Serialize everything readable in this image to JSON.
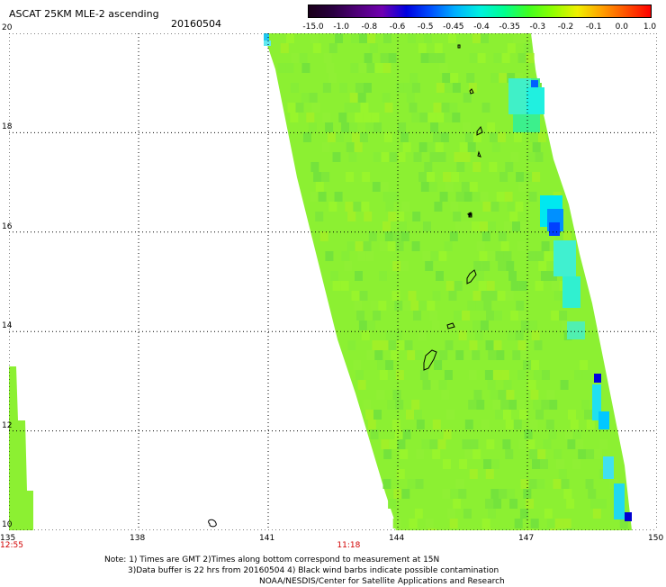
{
  "header": {
    "title": "ASCAT 25KM MLE-2 ascending",
    "date": "20160504"
  },
  "colorbar": {
    "labels": [
      "-15.0",
      "-1.0",
      "-0.8",
      "-0.6",
      "-0.5",
      "-0.45",
      "-0.4",
      "-0.35",
      "-0.3",
      "-0.2",
      "-0.1",
      "0.0",
      "1.0"
    ],
    "colors": [
      "#1a001a",
      "#2a0040",
      "#50007a",
      "#7000b0",
      "#0000e0",
      "#0050ff",
      "#00b0ff",
      "#00f0e0",
      "#00ff90",
      "#40ff20",
      "#90ff00",
      "#f0f000",
      "#ffa000",
      "#ff5000",
      "#ff0000"
    ]
  },
  "map": {
    "lon_labels": [
      "135",
      "138",
      "141",
      "144",
      "147",
      "150"
    ],
    "lat_labels": [
      "20",
      "18",
      "16",
      "14",
      "12",
      "10"
    ],
    "lon_range": [
      135,
      150
    ],
    "lat_range": [
      10,
      20
    ],
    "time_labels": [
      {
        "text": "12:55",
        "lon": 135
      },
      {
        "text": "11:18",
        "lon": 142.8
      }
    ],
    "swath_color": "#8cf032",
    "grid": true
  },
  "notes": {
    "line1": "Note: 1) Times are GMT 2)Times along bottom correspond to measurement at 15N",
    "line2": "3)Data buffer is 22 hrs from 20160504 4) Black wind barbs indicate possible contamination",
    "line3": "NOAA/NESDIS/Center for Satellite Applications and Research"
  }
}
